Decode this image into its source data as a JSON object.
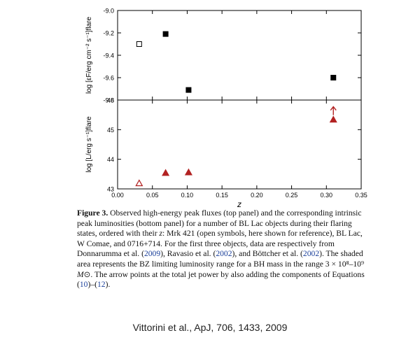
{
  "chart_data": [
    {
      "type": "scatter",
      "panel": "top",
      "ylabel": "log [εF/erg cm⁻² s⁻¹]flare",
      "xlim": [
        0.0,
        0.35
      ],
      "ylim": [
        -9.8,
        -9.0
      ],
      "yticks": [
        "-9.0",
        "-9.2",
        "-9.4",
        "-9.6",
        "-9.8"
      ],
      "series": [
        {
          "marker": "square-open",
          "color": "#000000",
          "points": [
            {
              "x": 0.031,
              "y": -9.3
            }
          ]
        },
        {
          "marker": "square-filled",
          "color": "#000000",
          "points": [
            {
              "x": 0.069,
              "y": -9.21
            },
            {
              "x": 0.102,
              "y": -9.71
            },
            {
              "x": 0.31,
              "y": -9.6
            }
          ]
        }
      ]
    },
    {
      "type": "scatter",
      "panel": "bottom",
      "xlabel": "z",
      "ylabel": "log [L/erg s⁻¹]flare",
      "xlim": [
        0.0,
        0.35
      ],
      "ylim": [
        43,
        46
      ],
      "xticks": [
        "0.00",
        "0.05",
        "0.10",
        "0.15",
        "0.20",
        "0.25",
        "0.30",
        "0.35"
      ],
      "yticks": [
        "43",
        "44",
        "45",
        "46"
      ],
      "series": [
        {
          "marker": "triangle-open",
          "color": "#b22222",
          "points": [
            {
              "x": 0.031,
              "y": 43.2
            }
          ]
        },
        {
          "marker": "triangle-filled",
          "color": "#b22222",
          "points": [
            {
              "x": 0.069,
              "y": 43.55
            },
            {
              "x": 0.102,
              "y": 43.57
            },
            {
              "x": 0.31,
              "y": 45.35
            }
          ]
        }
      ],
      "annotations": [
        {
          "type": "arrow-up",
          "x": 0.31,
          "y": 45.35,
          "color": "#b22222"
        }
      ]
    }
  ],
  "caption": {
    "label": "Figure 3.",
    "segments": [
      {
        "text": " Observed high-energy peak fluxes (top panel) and the corresponding intrinsic peak luminosities (bottom panel) for a number of BL Lac objects during their flaring states, ordered with their ",
        "style": "plain"
      },
      {
        "text": "z",
        "style": "italic"
      },
      {
        "text": ": Mrk 421 (open symbols, here shown for reference), BL Lac, W Comae, and 0716+714. For the first three objects, data are respectively from Donnarumma et al. (",
        "style": "plain"
      },
      {
        "text": "2009",
        "style": "ref"
      },
      {
        "text": "), Ravasio et al. (",
        "style": "plain"
      },
      {
        "text": "2002",
        "style": "ref"
      },
      {
        "text": "), and Böttcher et al. (",
        "style": "plain"
      },
      {
        "text": "2002",
        "style": "ref"
      },
      {
        "text": "). The shaded area represents the BZ limiting luminosity range for a BH mass in the range 3 × 10⁸–10⁹ ",
        "style": "plain"
      },
      {
        "text": "M",
        "style": "italic"
      },
      {
        "text": "⊙",
        "style": "plain"
      },
      {
        "text": ". The arrow points at the total jet power by also adding the components of Equations (",
        "style": "plain"
      },
      {
        "text": "10",
        "style": "ref"
      },
      {
        "text": ")–(",
        "style": "plain"
      },
      {
        "text": "12",
        "style": "ref"
      },
      {
        "text": ").",
        "style": "plain"
      }
    ]
  },
  "credit": "Vittorini et al., ApJ, 706, 1433, 2009"
}
